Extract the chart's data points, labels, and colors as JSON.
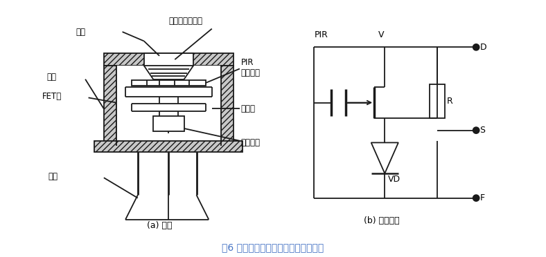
{
  "title": "图6 红外传感器内部结构与内部电路图",
  "title_color": "#4472C4",
  "bg_color": "#ffffff",
  "subtitle_a": "(a) 结构",
  "subtitle_b": "(b) 内部电路",
  "line_color": "#1a1a1a",
  "line_width": 1.3
}
